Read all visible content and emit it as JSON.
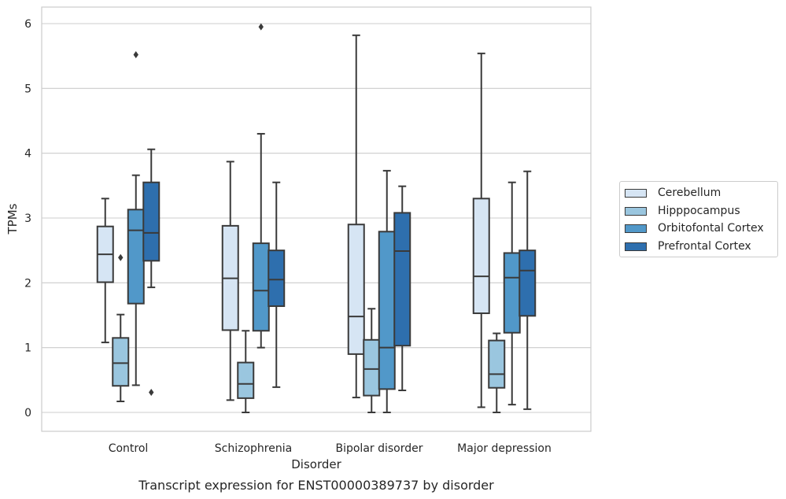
{
  "chart_data": {
    "type": "boxplot",
    "title": "Transcript expression for ENST00000389737 by disorder",
    "xlabel": "Disorder",
    "ylabel": "TPMs",
    "ylim": [
      -0.28,
      6.25
    ],
    "yticks": [
      "0",
      "1",
      "2",
      "3",
      "4",
      "5",
      "6"
    ],
    "categories": [
      "Control",
      "Schizophrenia",
      "Bipolar disorder",
      "Major depression"
    ],
    "grid": "horizontal",
    "legend_position": "right",
    "series": [
      {
        "name": "Cerebellum",
        "color": "#d6e5f4",
        "boxes": [
          {
            "whislo": 1.08,
            "q1": 2.01,
            "med": 2.44,
            "q3": 2.87,
            "whishi": 3.3,
            "fliers": []
          },
          {
            "whislo": 0.19,
            "q1": 1.27,
            "med": 2.07,
            "q3": 2.88,
            "whishi": 3.87,
            "fliers": []
          },
          {
            "whislo": 0.23,
            "q1": 0.9,
            "med": 1.48,
            "q3": 2.9,
            "whishi": 5.82,
            "fliers": []
          },
          {
            "whislo": 0.08,
            "q1": 1.53,
            "med": 2.1,
            "q3": 3.3,
            "whishi": 5.54,
            "fliers": []
          }
        ]
      },
      {
        "name": "Hipppocampus",
        "color": "#9ac6df",
        "boxes": [
          {
            "whislo": 0.17,
            "q1": 0.41,
            "med": 0.76,
            "q3": 1.15,
            "whishi": 1.51,
            "fliers": [
              2.39
            ]
          },
          {
            "whislo": 0.0,
            "q1": 0.22,
            "med": 0.44,
            "q3": 0.77,
            "whishi": 1.26,
            "fliers": []
          },
          {
            "whislo": 0.0,
            "q1": 0.26,
            "med": 0.67,
            "q3": 1.12,
            "whishi": 1.6,
            "fliers": []
          },
          {
            "whislo": 0.0,
            "q1": 0.38,
            "med": 0.59,
            "q3": 1.11,
            "whishi": 1.22,
            "fliers": []
          }
        ]
      },
      {
        "name": "Orbitofontal Cortex",
        "color": "#5198c9",
        "boxes": [
          {
            "whislo": 0.42,
            "q1": 1.68,
            "med": 2.81,
            "q3": 3.13,
            "whishi": 3.66,
            "fliers": [
              5.52
            ]
          },
          {
            "whislo": 1.0,
            "q1": 1.26,
            "med": 1.88,
            "q3": 2.61,
            "whishi": 4.3,
            "fliers": [
              5.95
            ]
          },
          {
            "whislo": 0.0,
            "q1": 0.36,
            "med": 1.0,
            "q3": 2.79,
            "whishi": 3.73,
            "fliers": []
          },
          {
            "whislo": 0.12,
            "q1": 1.23,
            "med": 2.08,
            "q3": 2.46,
            "whishi": 3.55,
            "fliers": []
          }
        ]
      },
      {
        "name": "Prefrontal Cortex",
        "color": "#2e6fae",
        "boxes": [
          {
            "whislo": 1.93,
            "q1": 2.34,
            "med": 2.77,
            "q3": 3.55,
            "whishi": 4.06,
            "fliers": [
              0.31
            ]
          },
          {
            "whislo": 0.39,
            "q1": 1.64,
            "med": 2.05,
            "q3": 2.5,
            "whishi": 3.55,
            "fliers": []
          },
          {
            "whislo": 0.34,
            "q1": 1.03,
            "med": 2.49,
            "q3": 3.08,
            "whishi": 3.49,
            "fliers": []
          },
          {
            "whislo": 0.05,
            "q1": 1.49,
            "med": 2.19,
            "q3": 2.5,
            "whishi": 3.72,
            "fliers": []
          }
        ]
      }
    ]
  }
}
